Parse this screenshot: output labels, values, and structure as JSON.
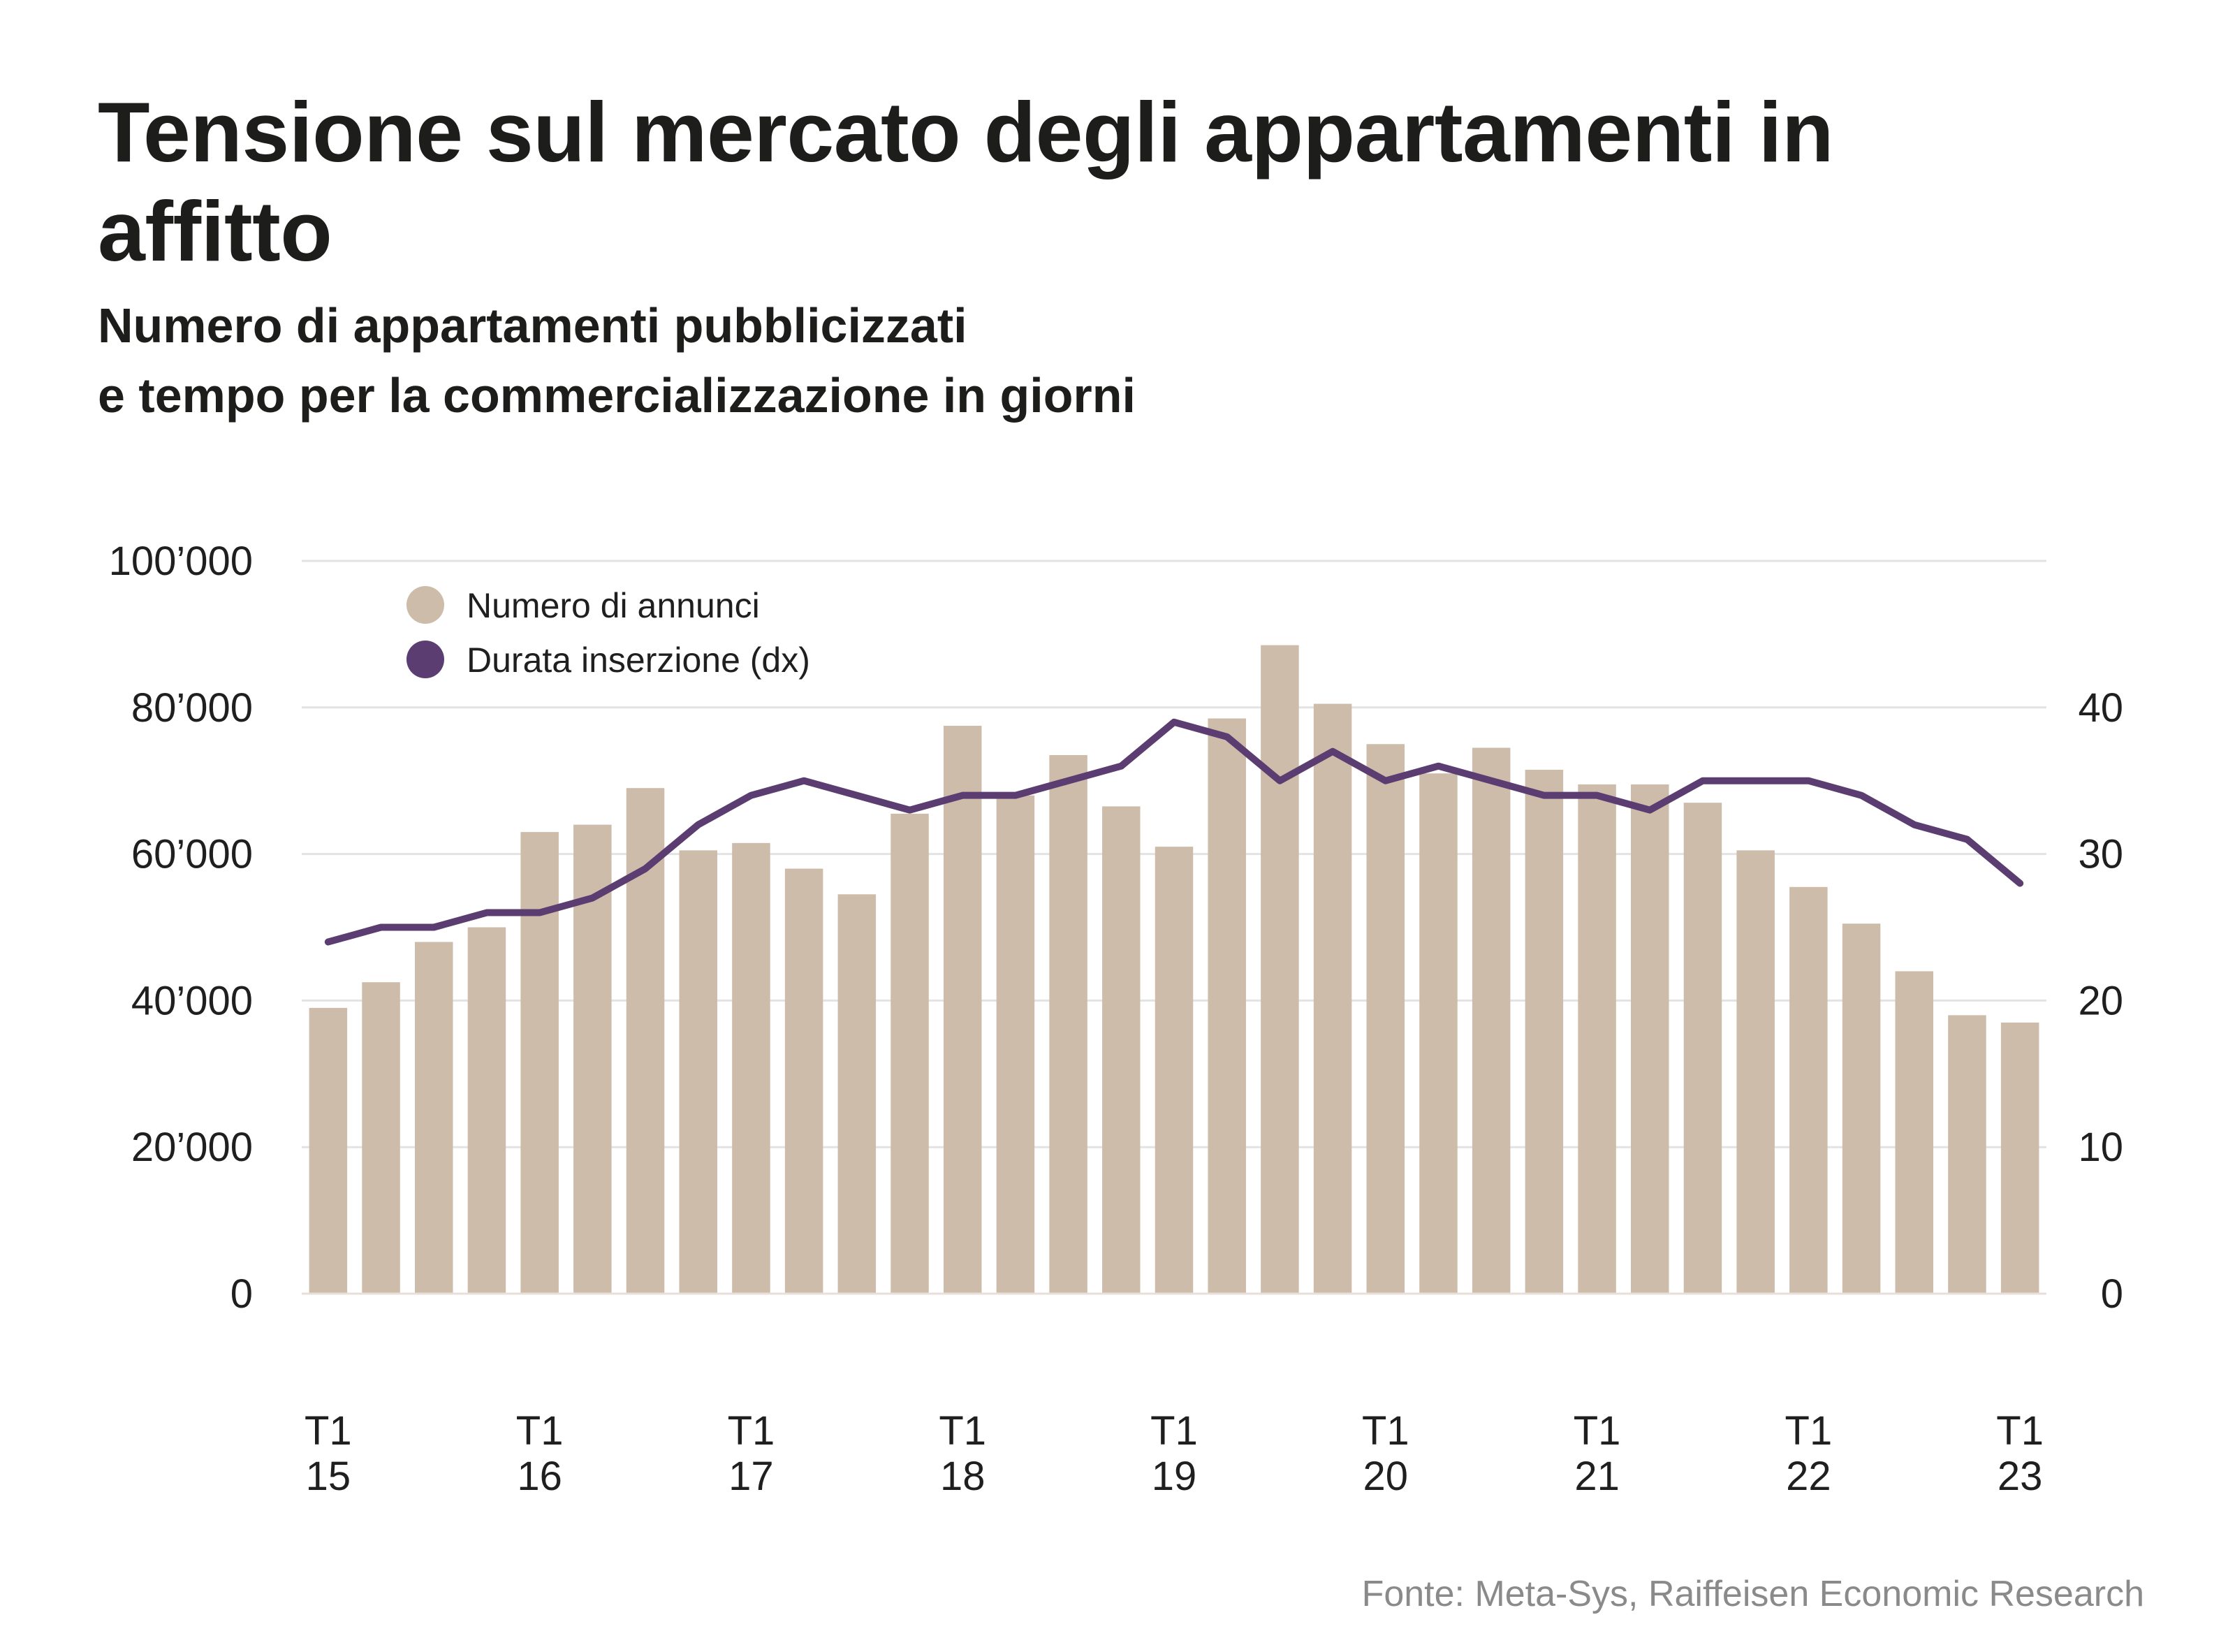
{
  "header": {
    "title": "Tensione sul mercato degli appartamenti in affitto",
    "subtitle_line1": "Numero di appartamenti pubblicizzati",
    "subtitle_line2": "e tempo per la commercializzazione in giorni"
  },
  "footer": {
    "source": "Fonte: Meta-Sys, Raiffeisen Economic Research"
  },
  "colors": {
    "bars": "#cdbcaa",
    "line": "#5b3d72",
    "grid": "#e3e3e3",
    "text": "#1f1f1f",
    "source": "#8a8a8a"
  },
  "chart_data": {
    "type": "bar",
    "title": "Tensione sul mercato degli appartamenti in affitto",
    "subtitle": "Numero di appartamenti pubblicizzati e tempo per la commercializzazione in giorni",
    "categories": [
      "T1 15",
      "T2 15",
      "T3 15",
      "T4 15",
      "T1 16",
      "T2 16",
      "T3 16",
      "T4 16",
      "T1 17",
      "T2 17",
      "T3 17",
      "T4 17",
      "T1 18",
      "T2 18",
      "T3 18",
      "T4 18",
      "T1 19",
      "T2 19",
      "T3 19",
      "T4 19",
      "T1 20",
      "T2 20",
      "T3 20",
      "T4 20",
      "T1 21",
      "T2 21",
      "T3 21",
      "T4 21",
      "T1 22",
      "T2 22",
      "T3 22",
      "T4 22",
      "T1 23"
    ],
    "x_tick_labels": [
      {
        "index": 0,
        "line1": "T1",
        "line2": "15"
      },
      {
        "index": 4,
        "line1": "T1",
        "line2": "16"
      },
      {
        "index": 8,
        "line1": "T1",
        "line2": "17"
      },
      {
        "index": 12,
        "line1": "T1",
        "line2": "18"
      },
      {
        "index": 16,
        "line1": "T1",
        "line2": "19"
      },
      {
        "index": 20,
        "line1": "T1",
        "line2": "20"
      },
      {
        "index": 24,
        "line1": "T1",
        "line2": "21"
      },
      {
        "index": 28,
        "line1": "T1",
        "line2": "22"
      },
      {
        "index": 32,
        "line1": "T1",
        "line2": "23"
      }
    ],
    "series": [
      {
        "name": "Numero di annunci",
        "type": "bar",
        "axis": "left",
        "values": [
          39000,
          42500,
          48000,
          50000,
          63000,
          64000,
          69000,
          60500,
          61500,
          58000,
          54500,
          65500,
          77500,
          68000,
          73500,
          66500,
          61000,
          78500,
          88500,
          80500,
          75000,
          71000,
          74500,
          71500,
          69500,
          69500,
          67000,
          60500,
          55500,
          50500,
          44000,
          38000,
          37000
        ]
      },
      {
        "name": "Durata inserzione (dx)",
        "type": "line",
        "axis": "right",
        "values": [
          24,
          25,
          25,
          26,
          26,
          27,
          29,
          32,
          34,
          35,
          34,
          33,
          34,
          34,
          35,
          36,
          39,
          38,
          35,
          37,
          35,
          36,
          35,
          34,
          34,
          33,
          35,
          35,
          35,
          34,
          32,
          31,
          28
        ]
      }
    ],
    "y_left": {
      "min": 0,
      "max": 100000,
      "ticks": [
        0,
        20000,
        40000,
        60000,
        80000,
        100000
      ],
      "tick_labels": [
        "0",
        "20’000",
        "40’000",
        "60’000",
        "80’000",
        "100’000"
      ]
    },
    "y_right": {
      "min": 0,
      "max": 50,
      "ticks": [
        0,
        10,
        20,
        30,
        40
      ],
      "tick_labels": [
        "0",
        "10",
        "20",
        "30",
        "40"
      ]
    },
    "grid": true,
    "legend": {
      "position": "top-left",
      "items": [
        {
          "label": "Numero di annunci",
          "marker": "circle",
          "color": "#cdbcaa"
        },
        {
          "label": "Durata inserzione (dx)",
          "marker": "circle",
          "color": "#5b3d72"
        }
      ]
    },
    "xlabel": "",
    "ylabel": ""
  }
}
